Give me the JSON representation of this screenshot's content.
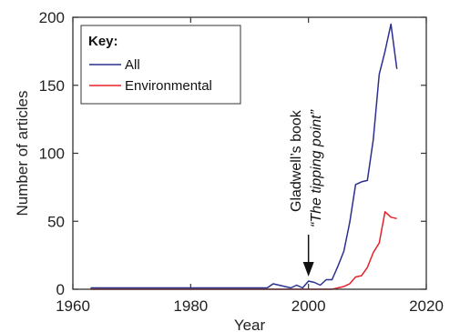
{
  "chart_data": {
    "type": "line",
    "xlabel": "Year",
    "ylabel": "Number of articles",
    "xlim": [
      1960,
      2020
    ],
    "ylim": [
      0,
      200
    ],
    "x_ticks": [
      1960,
      1980,
      2000,
      2020
    ],
    "y_ticks": [
      0,
      50,
      100,
      150,
      200
    ],
    "grid": false,
    "legend": {
      "title": "Key:",
      "placement": "top-left"
    },
    "series": [
      {
        "name": "All",
        "color": "#2b2f8f",
        "x": [
          1963,
          1966,
          1970,
          1975,
          1980,
          1985,
          1990,
          1993,
          1994,
          1996,
          1997,
          1998,
          1999,
          2000,
          2001,
          2002,
          2003,
          2004,
          2005,
          2006,
          2007,
          2008,
          2009,
          2010,
          2011,
          2012,
          2013,
          2014,
          2015
        ],
        "values": [
          1,
          1,
          1,
          1,
          1,
          1,
          1,
          1,
          4,
          2,
          1,
          3,
          1,
          6,
          5,
          3,
          7,
          7,
          17,
          28,
          49,
          77,
          79,
          80,
          110,
          158,
          175,
          195,
          162
        ]
      },
      {
        "name": "Environmental",
        "color": "#e8202a",
        "x": [
          1963,
          1970,
          1980,
          1990,
          2000,
          2003,
          2004,
          2005,
          2006,
          2007,
          2008,
          2009,
          2010,
          2011,
          2012,
          2013,
          2014,
          2015
        ],
        "values": [
          0,
          0,
          0,
          0,
          0,
          0,
          0,
          1,
          2,
          4,
          9,
          10,
          16,
          27,
          34,
          57,
          53,
          52
        ]
      }
    ],
    "annotation": {
      "line1": "Gladwell’s book",
      "line2": "“The tipping point”",
      "x": 2000
    }
  }
}
